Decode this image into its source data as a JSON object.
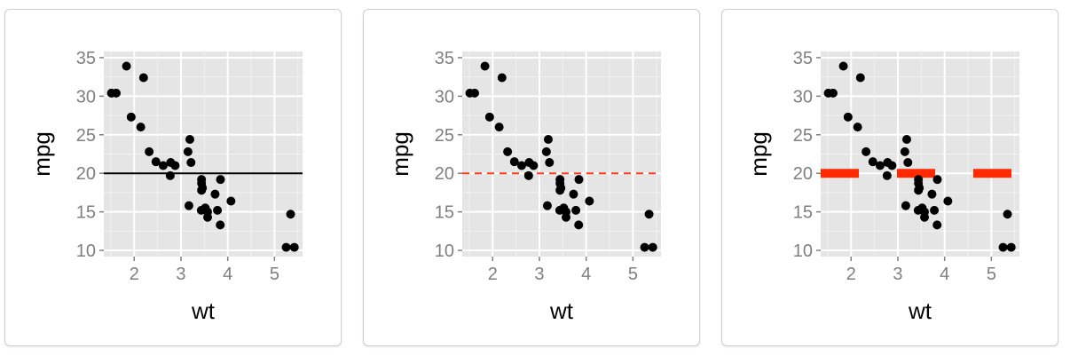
{
  "chart_data": [
    {
      "type": "scatter",
      "xlabel": "wt",
      "ylabel": "mpg",
      "xlim": [
        1.35,
        5.6
      ],
      "ylim": [
        9.2,
        35.8
      ],
      "xticks": [
        "2",
        "3",
        "4",
        "5"
      ],
      "yticks": [
        "10",
        "15",
        "20",
        "25",
        "30",
        "35"
      ],
      "grid": true,
      "points": {
        "x": [
          2.62,
          2.875,
          2.32,
          3.215,
          3.44,
          3.46,
          3.57,
          3.19,
          3.15,
          3.44,
          3.44,
          4.07,
          3.73,
          3.78,
          5.25,
          5.424,
          5.345,
          2.2,
          1.615,
          1.835,
          2.465,
          3.52,
          3.435,
          3.84,
          3.845,
          1.935,
          2.14,
          1.513,
          3.17,
          2.77,
          3.57,
          2.78
        ],
        "y": [
          21.0,
          21.0,
          22.8,
          21.4,
          18.7,
          18.1,
          14.3,
          24.4,
          22.8,
          19.2,
          17.8,
          16.4,
          17.3,
          15.2,
          10.4,
          10.4,
          14.7,
          32.4,
          30.4,
          33.9,
          21.5,
          15.5,
          15.2,
          13.3,
          19.2,
          27.3,
          26.0,
          30.4,
          15.8,
          19.7,
          15.0,
          21.4
        ]
      },
      "hline": {
        "y": 20,
        "style": "solid",
        "color": "#000000"
      }
    },
    {
      "type": "scatter",
      "xlabel": "wt",
      "ylabel": "mpg",
      "xlim": [
        1.35,
        5.6
      ],
      "ylim": [
        9.2,
        35.8
      ],
      "xticks": [
        "2",
        "3",
        "4",
        "5"
      ],
      "yticks": [
        "10",
        "15",
        "20",
        "25",
        "30",
        "35"
      ],
      "grid": true,
      "points": {
        "x": [
          2.62,
          2.875,
          2.32,
          3.215,
          3.44,
          3.46,
          3.57,
          3.19,
          3.15,
          3.44,
          3.44,
          4.07,
          3.73,
          3.78,
          5.25,
          5.424,
          5.345,
          2.2,
          1.615,
          1.835,
          2.465,
          3.52,
          3.435,
          3.84,
          3.845,
          1.935,
          2.14,
          1.513,
          3.17,
          2.77,
          3.57,
          2.78
        ],
        "y": [
          21.0,
          21.0,
          22.8,
          21.4,
          18.7,
          18.1,
          14.3,
          24.4,
          22.8,
          19.2,
          17.8,
          16.4,
          17.3,
          15.2,
          10.4,
          10.4,
          14.7,
          32.4,
          30.4,
          33.9,
          21.5,
          15.5,
          15.2,
          13.3,
          19.2,
          27.3,
          26.0,
          30.4,
          15.8,
          19.7,
          15.0,
          21.4
        ]
      },
      "hline": {
        "y": 20,
        "style": "dashed",
        "color": "#ff3b1f"
      }
    },
    {
      "type": "scatter",
      "xlabel": "wt",
      "ylabel": "mpg",
      "xlim": [
        1.35,
        5.6
      ],
      "ylim": [
        9.2,
        35.8
      ],
      "xticks": [
        "2",
        "3",
        "4",
        "5"
      ],
      "yticks": [
        "10",
        "15",
        "20",
        "25",
        "30",
        "35"
      ],
      "grid": true,
      "points": {
        "x": [
          2.62,
          2.875,
          2.32,
          3.215,
          3.44,
          3.46,
          3.57,
          3.19,
          3.15,
          3.44,
          3.44,
          4.07,
          3.73,
          3.78,
          5.25,
          5.424,
          5.345,
          2.2,
          1.615,
          1.835,
          2.465,
          3.52,
          3.435,
          3.84,
          3.845,
          1.935,
          2.14,
          1.513,
          3.17,
          2.77,
          3.57,
          2.78
        ],
        "y": [
          21.0,
          21.0,
          22.8,
          21.4,
          18.7,
          18.1,
          14.3,
          24.4,
          22.8,
          19.2,
          17.8,
          16.4,
          17.3,
          15.2,
          10.4,
          10.4,
          14.7,
          32.4,
          30.4,
          33.9,
          21.5,
          15.5,
          15.2,
          13.3,
          19.2,
          27.3,
          26.0,
          30.4,
          15.8,
          19.7,
          15.0,
          21.4
        ]
      },
      "hline": {
        "y": 20,
        "style": "thick-dashed",
        "color": "#ff2a00"
      }
    }
  ]
}
